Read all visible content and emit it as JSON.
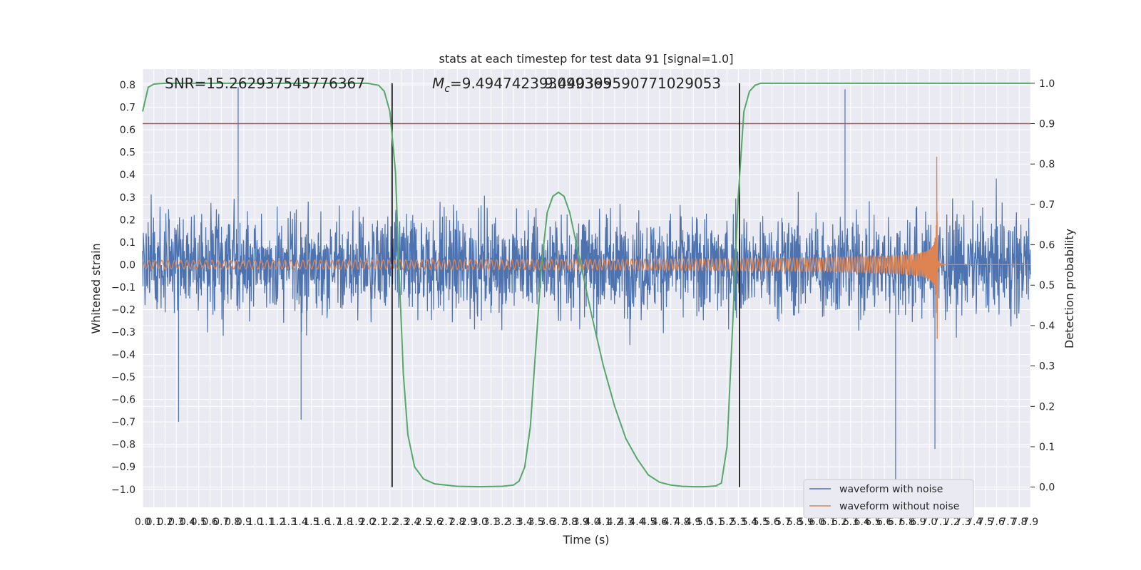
{
  "chart_data": {
    "type": "line",
    "title": "stats at each timestep for test data 91 [signal=1.0]",
    "xlabel": "Time (s)",
    "ylabel": "Whitened strain",
    "y2label": "Detection probability",
    "xlim": [
      0.0,
      7.9
    ],
    "ylim": [
      -1.08,
      0.87
    ],
    "y2lim": [
      -0.05,
      1.035
    ],
    "x_ticks": [
      "0.0",
      "0.1",
      "0.2",
      "0.3",
      "0.4",
      "0.5",
      "0.6",
      "0.7",
      "0.8",
      "0.9",
      "1.0",
      "1.1",
      "1.2",
      "1.3",
      "1.4",
      "1.5",
      "1.6",
      "1.7",
      "1.8",
      "1.9",
      "2.0",
      "2.1",
      "2.2",
      "2.3",
      "2.4",
      "2.5",
      "2.6",
      "2.7",
      "2.8",
      "2.9",
      "3.0",
      "3.1",
      "3.2",
      "3.3",
      "3.4",
      "3.5",
      "3.6",
      "3.7",
      "3.8",
      "3.9",
      "4.0",
      "4.1",
      "4.2",
      "4.3",
      "4.4",
      "4.5",
      "4.6",
      "4.7",
      "4.8",
      "4.9",
      "5.0",
      "5.1",
      "5.2",
      "5.3",
      "5.4",
      "5.5",
      "5.6",
      "5.7",
      "5.8",
      "5.9",
      "6.0",
      "6.1",
      "6.2",
      "6.3",
      "6.4",
      "6.5",
      "6.6",
      "6.7",
      "6.8",
      "6.9",
      "7.0",
      "7.1",
      "7.2",
      "7.3",
      "7.4",
      "7.5",
      "7.6",
      "7.7",
      "7.8",
      "7.9"
    ],
    "y_ticks": [
      "0.8",
      "0.7",
      "0.6",
      "0.5",
      "0.4",
      "0.3",
      "0.2",
      "0.1",
      "0.0",
      "−0.1",
      "−0.2",
      "−0.3",
      "−0.4",
      "−0.5",
      "−0.6",
      "−0.7",
      "−0.8",
      "−0.9",
      "−1.0"
    ],
    "y2_ticks": [
      "1.0",
      "0.9",
      "0.8",
      "0.7",
      "0.6",
      "0.5",
      "0.4",
      "0.3",
      "0.2",
      "0.1",
      "0.0"
    ],
    "annotations": {
      "snr": "SNR=15.262937545776367",
      "mc_symbol": "M",
      "mc_sub": "c",
      "mc_value": "=9.494742393099365",
      "overlap": "9.440399590771029053"
    },
    "threshold": 0.9,
    "vlines": [
      2.22,
      5.31
    ],
    "series": [
      {
        "name": "waveform with noise",
        "color": "#4c72b0",
        "kind": "noise",
        "amplitude_sd": 0.22,
        "max": 0.79,
        "min": -0.98
      },
      {
        "name": "waveform without noise",
        "color": "#dd8452",
        "kind": "chirp",
        "merger_time": 7.07,
        "peak": 0.48,
        "trough": -0.33
      },
      {
        "name": "detection probability",
        "color": "#55a868",
        "axis": "right",
        "x": [
          0.0,
          0.05,
          0.1,
          0.2,
          0.3,
          0.5,
          1.0,
          1.5,
          2.0,
          2.1,
          2.15,
          2.2,
          2.25,
          2.28,
          2.32,
          2.36,
          2.42,
          2.5,
          2.6,
          2.8,
          3.0,
          3.2,
          3.3,
          3.35,
          3.4,
          3.45,
          3.5,
          3.55,
          3.6,
          3.65,
          3.7,
          3.75,
          3.8,
          3.9,
          4.0,
          4.1,
          4.2,
          4.3,
          4.4,
          4.5,
          4.6,
          4.7,
          4.8,
          4.9,
          5.0,
          5.1,
          5.15,
          5.2,
          5.25,
          5.3,
          5.35,
          5.4,
          5.45,
          5.5,
          5.6,
          5.8,
          6.0,
          7.0,
          7.9
        ],
        "y": [
          0.93,
          0.99,
          0.998,
          1.0,
          1.0,
          1.0,
          1.0,
          1.0,
          1.0,
          0.995,
          0.98,
          0.93,
          0.78,
          0.55,
          0.28,
          0.13,
          0.05,
          0.02,
          0.008,
          0.002,
          0.001,
          0.002,
          0.005,
          0.015,
          0.05,
          0.15,
          0.35,
          0.55,
          0.68,
          0.72,
          0.73,
          0.72,
          0.68,
          0.55,
          0.42,
          0.3,
          0.2,
          0.12,
          0.07,
          0.03,
          0.012,
          0.005,
          0.002,
          0.001,
          0.001,
          0.003,
          0.01,
          0.1,
          0.4,
          0.72,
          0.93,
          0.98,
          0.995,
          1.0,
          1.0,
          1.0,
          1.0,
          1.0,
          1.0
        ]
      },
      {
        "name": "threshold",
        "color": "#c44e52",
        "axis": "right",
        "value": 0.9
      }
    ],
    "legend": {
      "placement": "lower-right",
      "entries": [
        {
          "label": "waveform with noise",
          "color": "#4c72b0"
        },
        {
          "label": "waveform without noise",
          "color": "#dd8452"
        }
      ]
    },
    "grid": true,
    "colors": {
      "background": "#eaeaf2",
      "grid": "#ffffff",
      "vline": "#000000"
    }
  }
}
